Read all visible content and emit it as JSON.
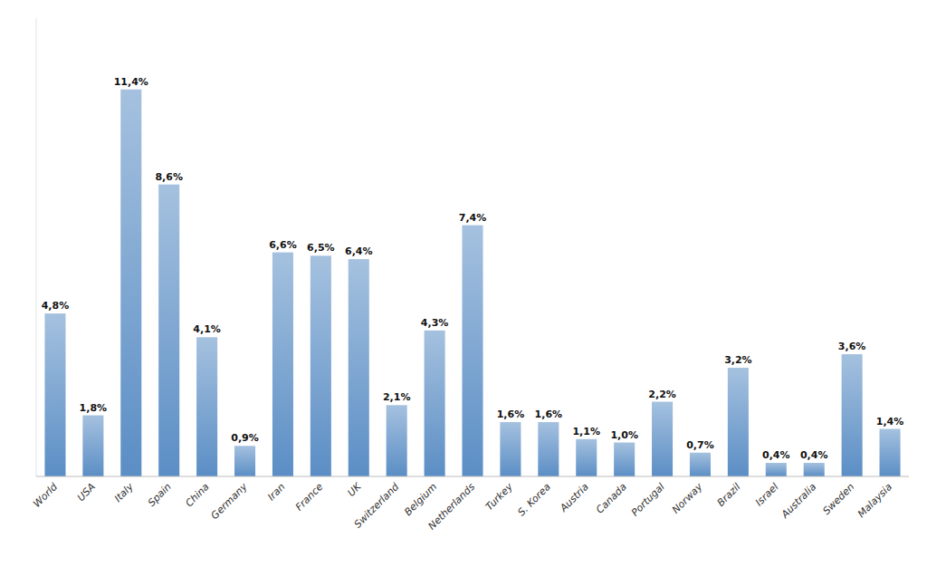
{
  "chart_data": {
    "type": "bar",
    "categories": [
      "World",
      "USA",
      "Italy",
      "Spain",
      "China",
      "Germany",
      "Iran",
      "France",
      "UK",
      "Switzerland",
      "Belgium",
      "Netherlands",
      "Turkey",
      "S. Korea",
      "Austria",
      "Canada",
      "Portugal",
      "Norway",
      "Brazil",
      "Israel",
      "Australia",
      "Sweden",
      "Malaysia"
    ],
    "values": [
      4.8,
      1.8,
      11.4,
      8.6,
      4.1,
      0.9,
      6.6,
      6.5,
      6.4,
      2.1,
      4.3,
      7.4,
      1.6,
      1.6,
      1.1,
      1.0,
      2.2,
      0.7,
      3.2,
      0.4,
      0.4,
      3.6,
      1.4
    ],
    "value_labels": [
      "4,8%",
      "1,8%",
      "11,4%",
      "8,6%",
      "4,1%",
      "0,9%",
      "6,6%",
      "6,5%",
      "6,4%",
      "2,1%",
      "4,3%",
      "7,4%",
      "1,6%",
      "1,6%",
      "1,1%",
      "1,0%",
      "2,2%",
      "0,7%",
      "3,2%",
      "0,4%",
      "0,4%",
      "3,6%",
      "1,4%"
    ],
    "color": "#5B8EC5",
    "ylim": [
      0,
      13.5
    ],
    "data_labels": true,
    "tick_labels": "x",
    "grid": false
  }
}
